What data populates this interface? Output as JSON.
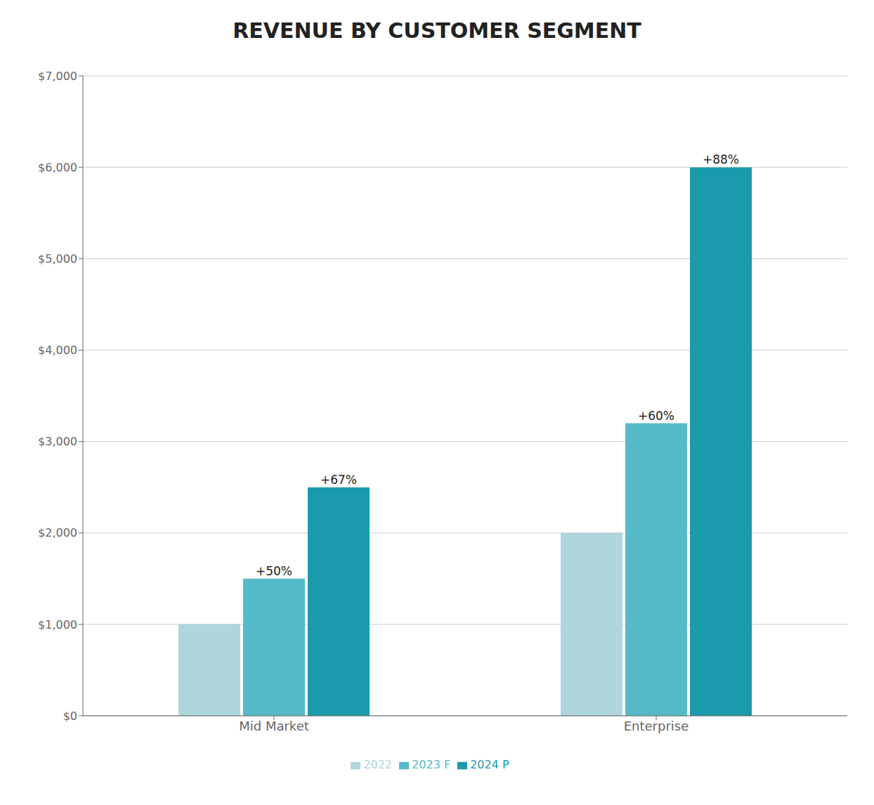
{
  "chart_data": {
    "type": "bar",
    "title": "REVENUE BY CUSTOMER SEGMENT",
    "categories": [
      "Mid Market",
      "Enterprise"
    ],
    "series": [
      {
        "name": "2022",
        "color": "#aed6dc",
        "values": [
          1000,
          2000
        ]
      },
      {
        "name": "2023 F",
        "color": "#55bbc8",
        "values": [
          1500,
          3200
        ],
        "annotations": [
          "+50%",
          "+60%"
        ]
      },
      {
        "name": "2024 P",
        "color": "#1a9aaa",
        "values": [
          2500,
          6000
        ],
        "annotations": [
          "+67%",
          "+88%"
        ]
      }
    ],
    "ylim": [
      0,
      7000
    ],
    "yticks": [
      {
        "value": 0,
        "label": "$0"
      },
      {
        "value": 1000,
        "label": "$1,000"
      },
      {
        "value": 2000,
        "label": "$2,000"
      },
      {
        "value": 3000,
        "label": "$3,000"
      },
      {
        "value": 4000,
        "label": "$4,000"
      },
      {
        "value": 5000,
        "label": "$5,000"
      },
      {
        "value": 6000,
        "label": "$6,000"
      },
      {
        "value": 7000,
        "label": "$7,000"
      }
    ],
    "grid": true,
    "legend": "bottom"
  }
}
